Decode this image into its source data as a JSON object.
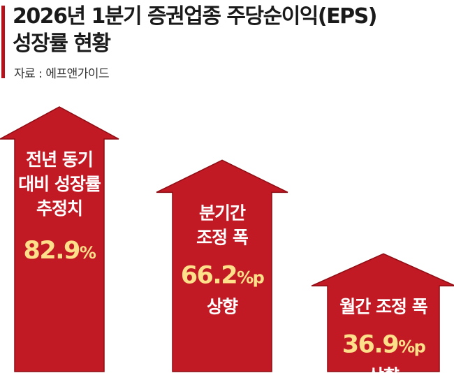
{
  "title_line1": "2026년 1분기 증권업종 주당순이익(EPS)",
  "title_line2": "성장률 현황",
  "source": "자료 : 에프앤가이드",
  "colors": {
    "arrow_fill": "#c21a24",
    "arrow_border": "#8e0c13",
    "label_text": "#ffffff",
    "value_text": "#ffe08a",
    "accent": "#b5121b"
  },
  "chart_data": {
    "type": "bar",
    "style": "up-arrows",
    "categories": [
      {
        "lines": [
          "전년 동기",
          "대비 성장률",
          "추정치"
        ]
      },
      {
        "lines": [
          "분기간",
          "조정 폭"
        ]
      },
      {
        "lines": [
          "월간 조정 폭"
        ]
      }
    ],
    "series": [
      {
        "values": [
          82.9,
          66.2,
          36.9
        ],
        "value_labels": [
          {
            "num": "82.9",
            "unit": "%"
          },
          {
            "num": "66.2",
            "unit": "%p"
          },
          {
            "num": "36.9",
            "unit": "%p"
          }
        ],
        "suffix_labels": [
          "",
          "상향",
          "상향"
        ]
      }
    ]
  }
}
